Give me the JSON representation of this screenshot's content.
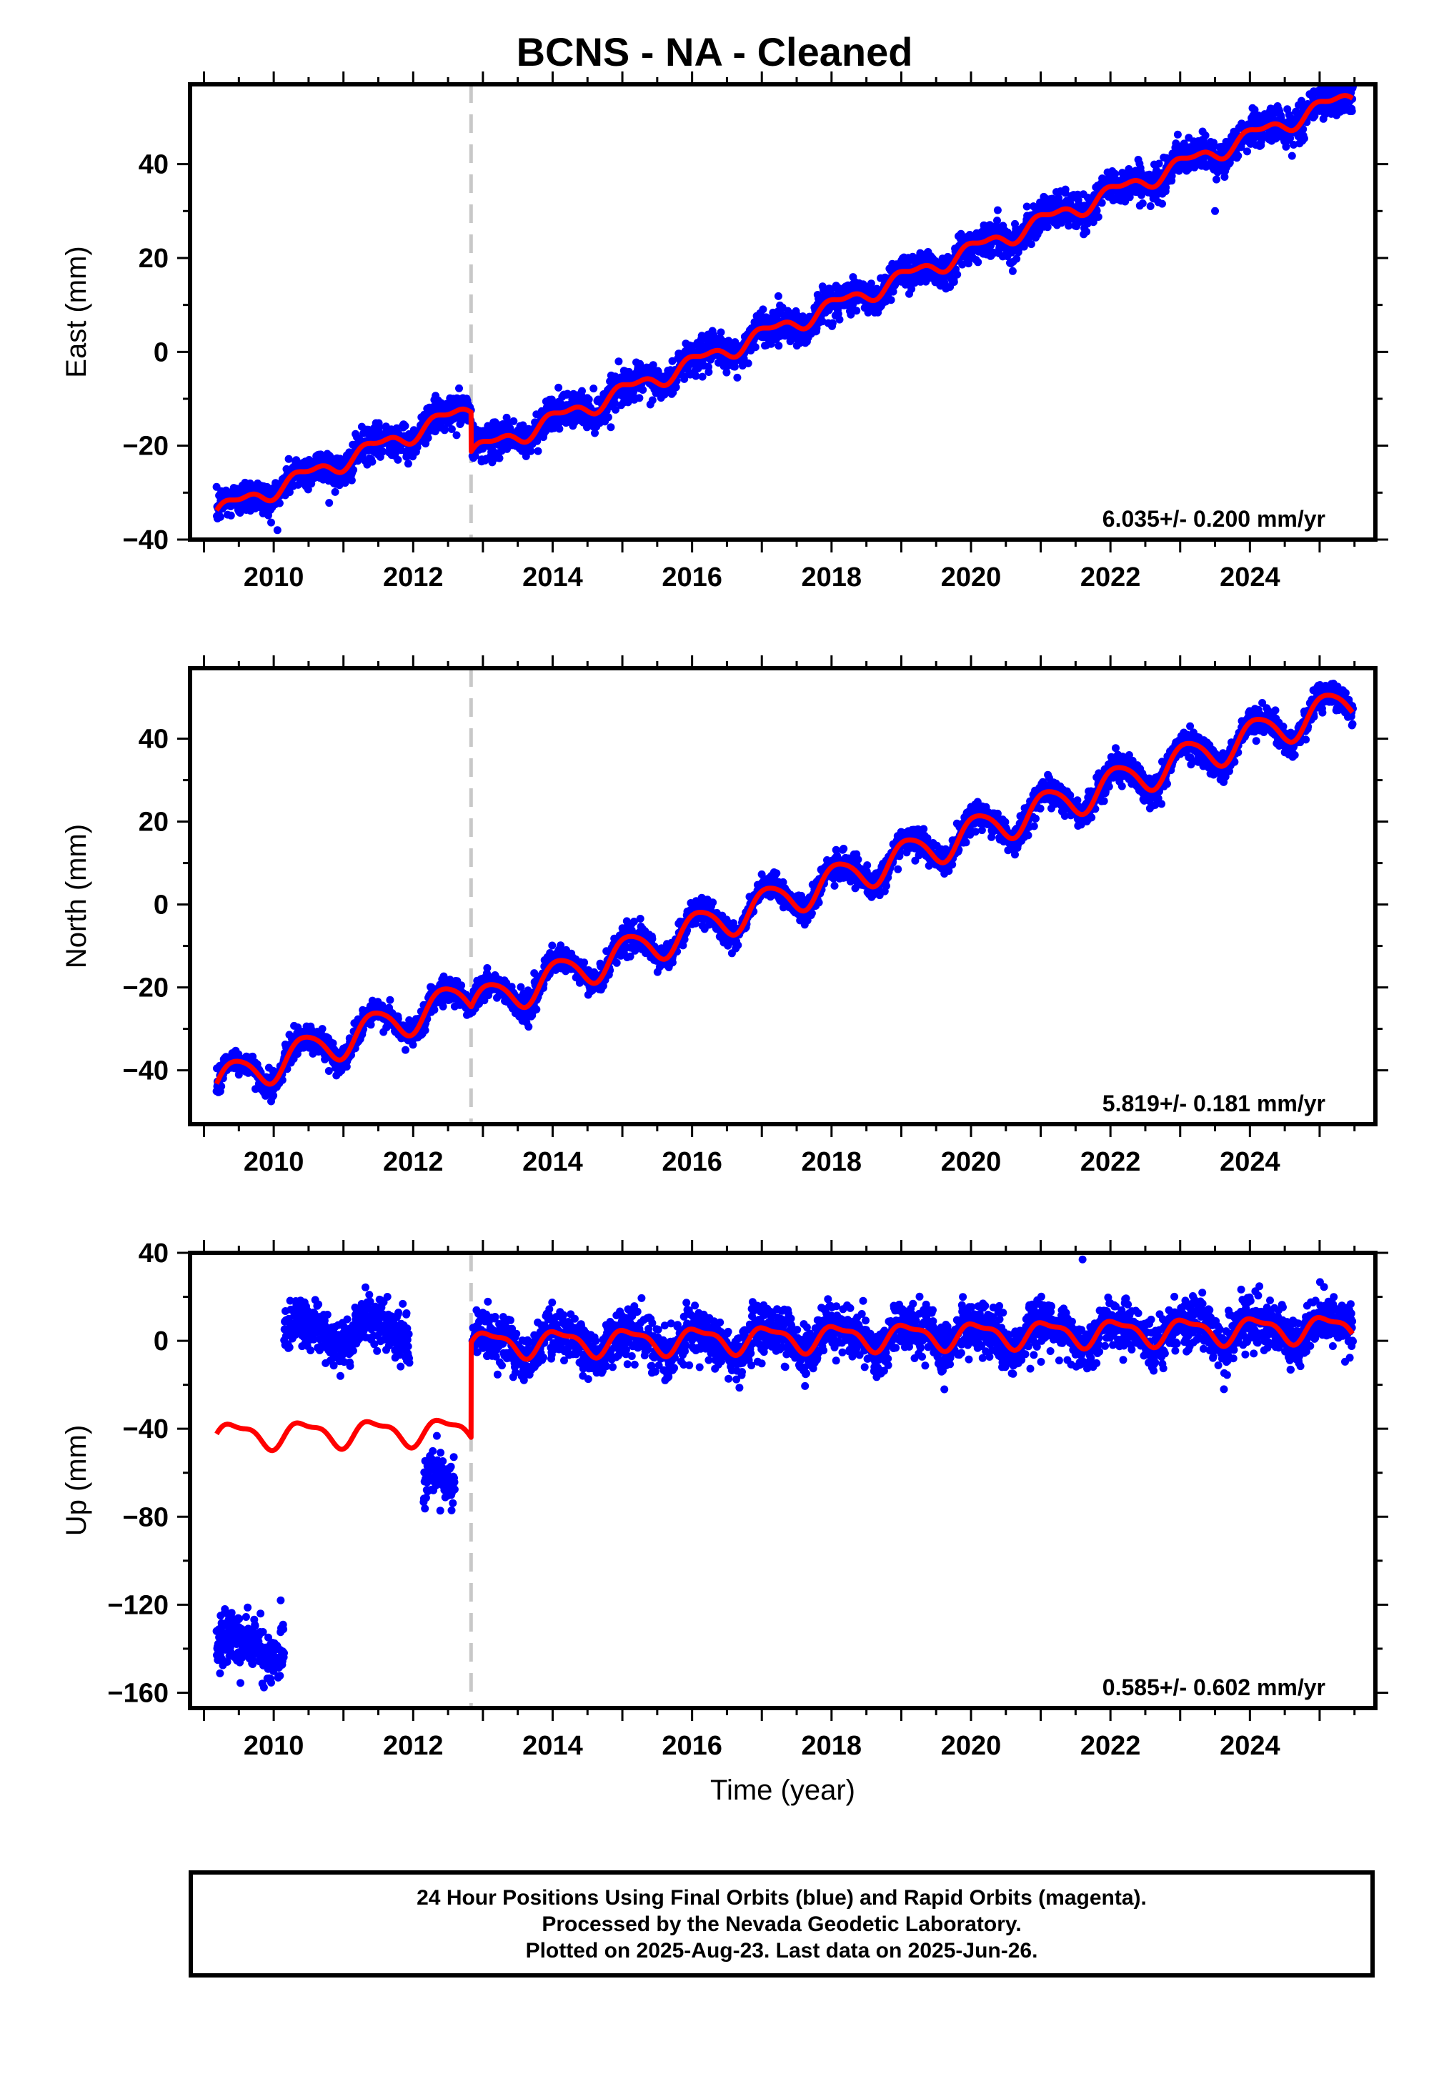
{
  "title": "BCNS  - NA - Cleaned",
  "footer": {
    "line1": "24 Hour Positions Using Final Orbits (blue) and Rapid Orbits (magenta).",
    "line2": "Processed by the Nevada Geodetic Laboratory.",
    "line3": "Plotted on 2025-Aug-23. Last data on 2025-Jun-26."
  },
  "colors": {
    "data": "#0000ff",
    "model": "#ff0000",
    "break": "#c8c8c8",
    "frame": "#000000"
  },
  "chart_data": [
    {
      "type": "scatter",
      "ylabel": "East (mm)",
      "xlabel": "",
      "xlim": [
        2008.8,
        2025.8
      ],
      "ylim": [
        -40,
        57
      ],
      "xticks": [
        2010,
        2012,
        2014,
        2016,
        2018,
        2020,
        2022,
        2024
      ],
      "yticks": [
        -40,
        -20,
        0,
        20,
        40
      ],
      "break_year": 2012.83,
      "rate_label": "6.035+/- 0.200 mm/yr",
      "model": {
        "rate": 6.035,
        "pre": {
          "y0": 2009.2,
          "v0": -34.0,
          "a1": 1.6,
          "a2": 0.8
        },
        "post": {
          "y0": 2012.85,
          "v0": -21.5,
          "a1": 1.6,
          "a2": 0.8
        }
      },
      "data_scatter_mm": 1.8,
      "segments": [
        {
          "start": 2009.18,
          "end": 2012.83,
          "offset": 0
        },
        {
          "start": 2012.85,
          "end": 2025.48,
          "offset": 0
        }
      ],
      "outliers": [
        {
          "x": 2023.5,
          "y": 30
        }
      ]
    },
    {
      "type": "scatter",
      "ylabel": "North (mm)",
      "xlabel": "",
      "xlim": [
        2008.8,
        2025.8
      ],
      "ylim": [
        -53,
        57
      ],
      "xticks": [
        2010,
        2012,
        2014,
        2016,
        2018,
        2020,
        2022,
        2024
      ],
      "yticks": [
        -40,
        -20,
        0,
        20,
        40
      ],
      "break_year": 2012.83,
      "rate_label": "5.819+/- 0.181 mm/yr",
      "model": {
        "rate": 5.819,
        "pre": {
          "y0": 2009.2,
          "v0": -43.0,
          "a1": 4.2,
          "a2": 0.6
        },
        "post": {
          "y0": 2012.85,
          "v0": -24.5,
          "a1": 4.2,
          "a2": 0.6
        }
      },
      "data_scatter_mm": 1.6,
      "segments": [
        {
          "start": 2009.18,
          "end": 2012.83,
          "offset": 0
        },
        {
          "start": 2012.85,
          "end": 2025.48,
          "offset": 0
        }
      ],
      "outliers": []
    },
    {
      "type": "scatter",
      "ylabel": "Up (mm)",
      "xlabel": "Time (year)",
      "xlim": [
        2008.8,
        2025.8
      ],
      "ylim": [
        -167,
        40
      ],
      "xticks": [
        2010,
        2012,
        2014,
        2016,
        2018,
        2020,
        2022,
        2024
      ],
      "yticks": [
        -160,
        -120,
        -80,
        -40,
        0,
        40
      ],
      "break_year": 2012.83,
      "rate_label": "0.585+/- 0.602 mm/yr",
      "model": {
        "rate": 0.585,
        "pre": {
          "y0": 2009.2,
          "v0": -43.0,
          "a1": 5.5,
          "a2": 2.0
        },
        "post": {
          "y0": 2012.85,
          "v0": -1.5,
          "a1": 5.5,
          "a2": 2.0
        }
      },
      "data_scatter_mm": 5.5,
      "segments": [
        {
          "start": 2009.18,
          "end": 2010.15,
          "offset": -96
        },
        {
          "start": 2010.15,
          "end": 2011.95,
          "offset": 46
        },
        {
          "start": 2012.15,
          "end": 2012.6,
          "offset": -25
        },
        {
          "start": 2012.85,
          "end": 2025.48,
          "offset": 0
        }
      ],
      "outliers": [
        {
          "x": 2021.6,
          "y": 37
        },
        {
          "x": 2009.3,
          "y": -122
        },
        {
          "x": 2010.1,
          "y": -118
        }
      ]
    }
  ]
}
